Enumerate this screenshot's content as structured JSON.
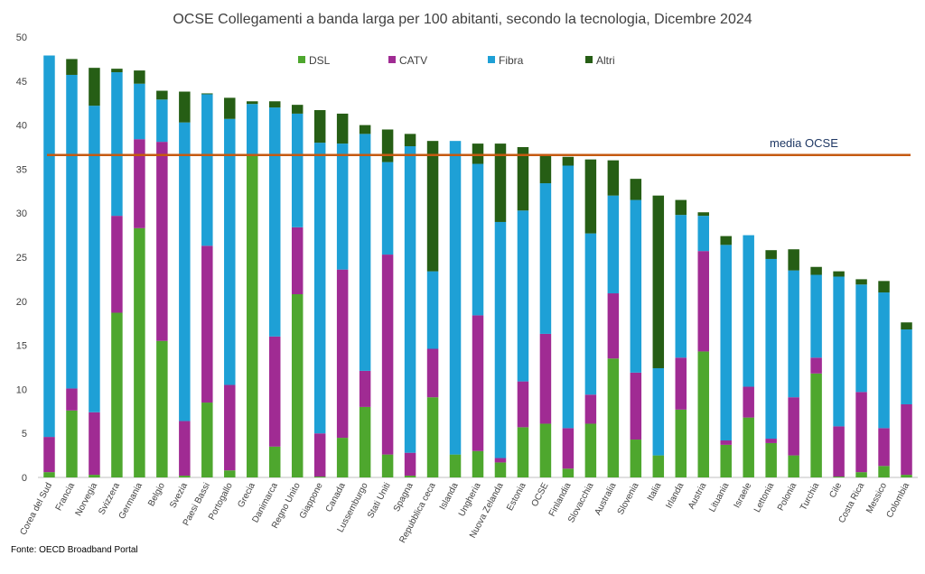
{
  "chart_data": {
    "type": "bar",
    "stacked": true,
    "title": "OCSE Collegamenti a banda larga per 100 abitanti, secondo la tecnologia, Dicembre 2024",
    "source": "Fonte: OECD Broadband Portal",
    "ylim": [
      0,
      50
    ],
    "yticks": [
      "0",
      "5",
      "10",
      "15",
      "20",
      "25",
      "30",
      "35",
      "40",
      "45",
      "50"
    ],
    "grid": false,
    "legend_position": "top",
    "categories": [
      "Corea del Sud",
      "Francia",
      "Norvegia",
      "Svizzera",
      "Germania",
      "Belgio",
      "Svezia",
      "Paesi Bassi",
      "Portogallo",
      "Grecia",
      "Danimarca",
      "Regno Unito",
      "Giappone",
      "Canada",
      "Lussemburgo",
      "Stati Uniti",
      "Spagna",
      "Repubblica ceca",
      "Islanda",
      "Ungheria",
      "Nuova Zelanda",
      "Estonia",
      "OCSE",
      "Finlandia",
      "Slovacchia",
      "Australia",
      "Slovenia",
      "Italia",
      "Irlanda",
      "Austria",
      "Lituania",
      "Israele",
      "Lettonia",
      "Polonia",
      "Turchia",
      "Cile",
      "Costa Rica",
      "Messico",
      "Colombia"
    ],
    "series": [
      {
        "name": "DSL",
        "color": "#4ea72e",
        "values": [
          0.6,
          7.6,
          0.3,
          18.7,
          28.3,
          15.5,
          0.2,
          8.5,
          0.8,
          36.5,
          3.5,
          20.8,
          0.1,
          4.5,
          8.0,
          2.6,
          0.2,
          9.1,
          2.6,
          3.0,
          1.7,
          5.7,
          6.1,
          1.0,
          6.1,
          13.5,
          4.3,
          2.5,
          7.7,
          14.3,
          3.7,
          6.8,
          3.9,
          2.5,
          11.8,
          0.1,
          0.6,
          1.3,
          0.3
        ]
      },
      {
        "name": "CATV",
        "color": "#a02b93",
        "values": [
          4.0,
          2.5,
          7.1,
          11.0,
          10.1,
          22.6,
          6.2,
          17.8,
          9.7,
          0.1,
          12.5,
          7.6,
          4.9,
          19.1,
          4.1,
          22.7,
          2.6,
          5.5,
          0.0,
          15.4,
          0.5,
          5.2,
          10.2,
          4.6,
          3.3,
          7.4,
          7.6,
          0.0,
          5.9,
          11.4,
          0.5,
          3.5,
          0.5,
          6.6,
          1.8,
          5.7,
          9.1,
          4.3,
          8.0
        ]
      },
      {
        "name": "Fibra",
        "color": "#1ea0d6",
        "values": [
          43.3,
          35.6,
          34.8,
          16.3,
          6.3,
          4.8,
          33.9,
          17.2,
          30.2,
          5.8,
          26.0,
          12.9,
          33.0,
          14.3,
          26.9,
          10.5,
          34.8,
          8.8,
          35.6,
          17.2,
          26.8,
          19.4,
          17.1,
          29.8,
          18.3,
          11.1,
          19.6,
          9.9,
          16.2,
          4.0,
          22.2,
          17.2,
          20.4,
          14.4,
          9.4,
          17.0,
          12.2,
          15.4,
          8.5
        ]
      },
      {
        "name": "Altri",
        "color": "#265e15",
        "values": [
          0.0,
          1.8,
          4.3,
          0.4,
          1.5,
          1.0,
          3.5,
          0.1,
          2.4,
          0.3,
          0.7,
          1.0,
          3.7,
          3.4,
          1.0,
          3.7,
          1.4,
          14.8,
          0.0,
          2.3,
          8.9,
          7.2,
          3.1,
          1.0,
          8.4,
          4.0,
          2.4,
          19.6,
          1.7,
          0.4,
          1.0,
          0.0,
          1.0,
          2.4,
          0.9,
          0.6,
          0.6,
          1.3,
          0.8
        ]
      }
    ],
    "reference_line": {
      "name": "media OCSE",
      "value": 36.6,
      "color": "#c55a11"
    }
  }
}
